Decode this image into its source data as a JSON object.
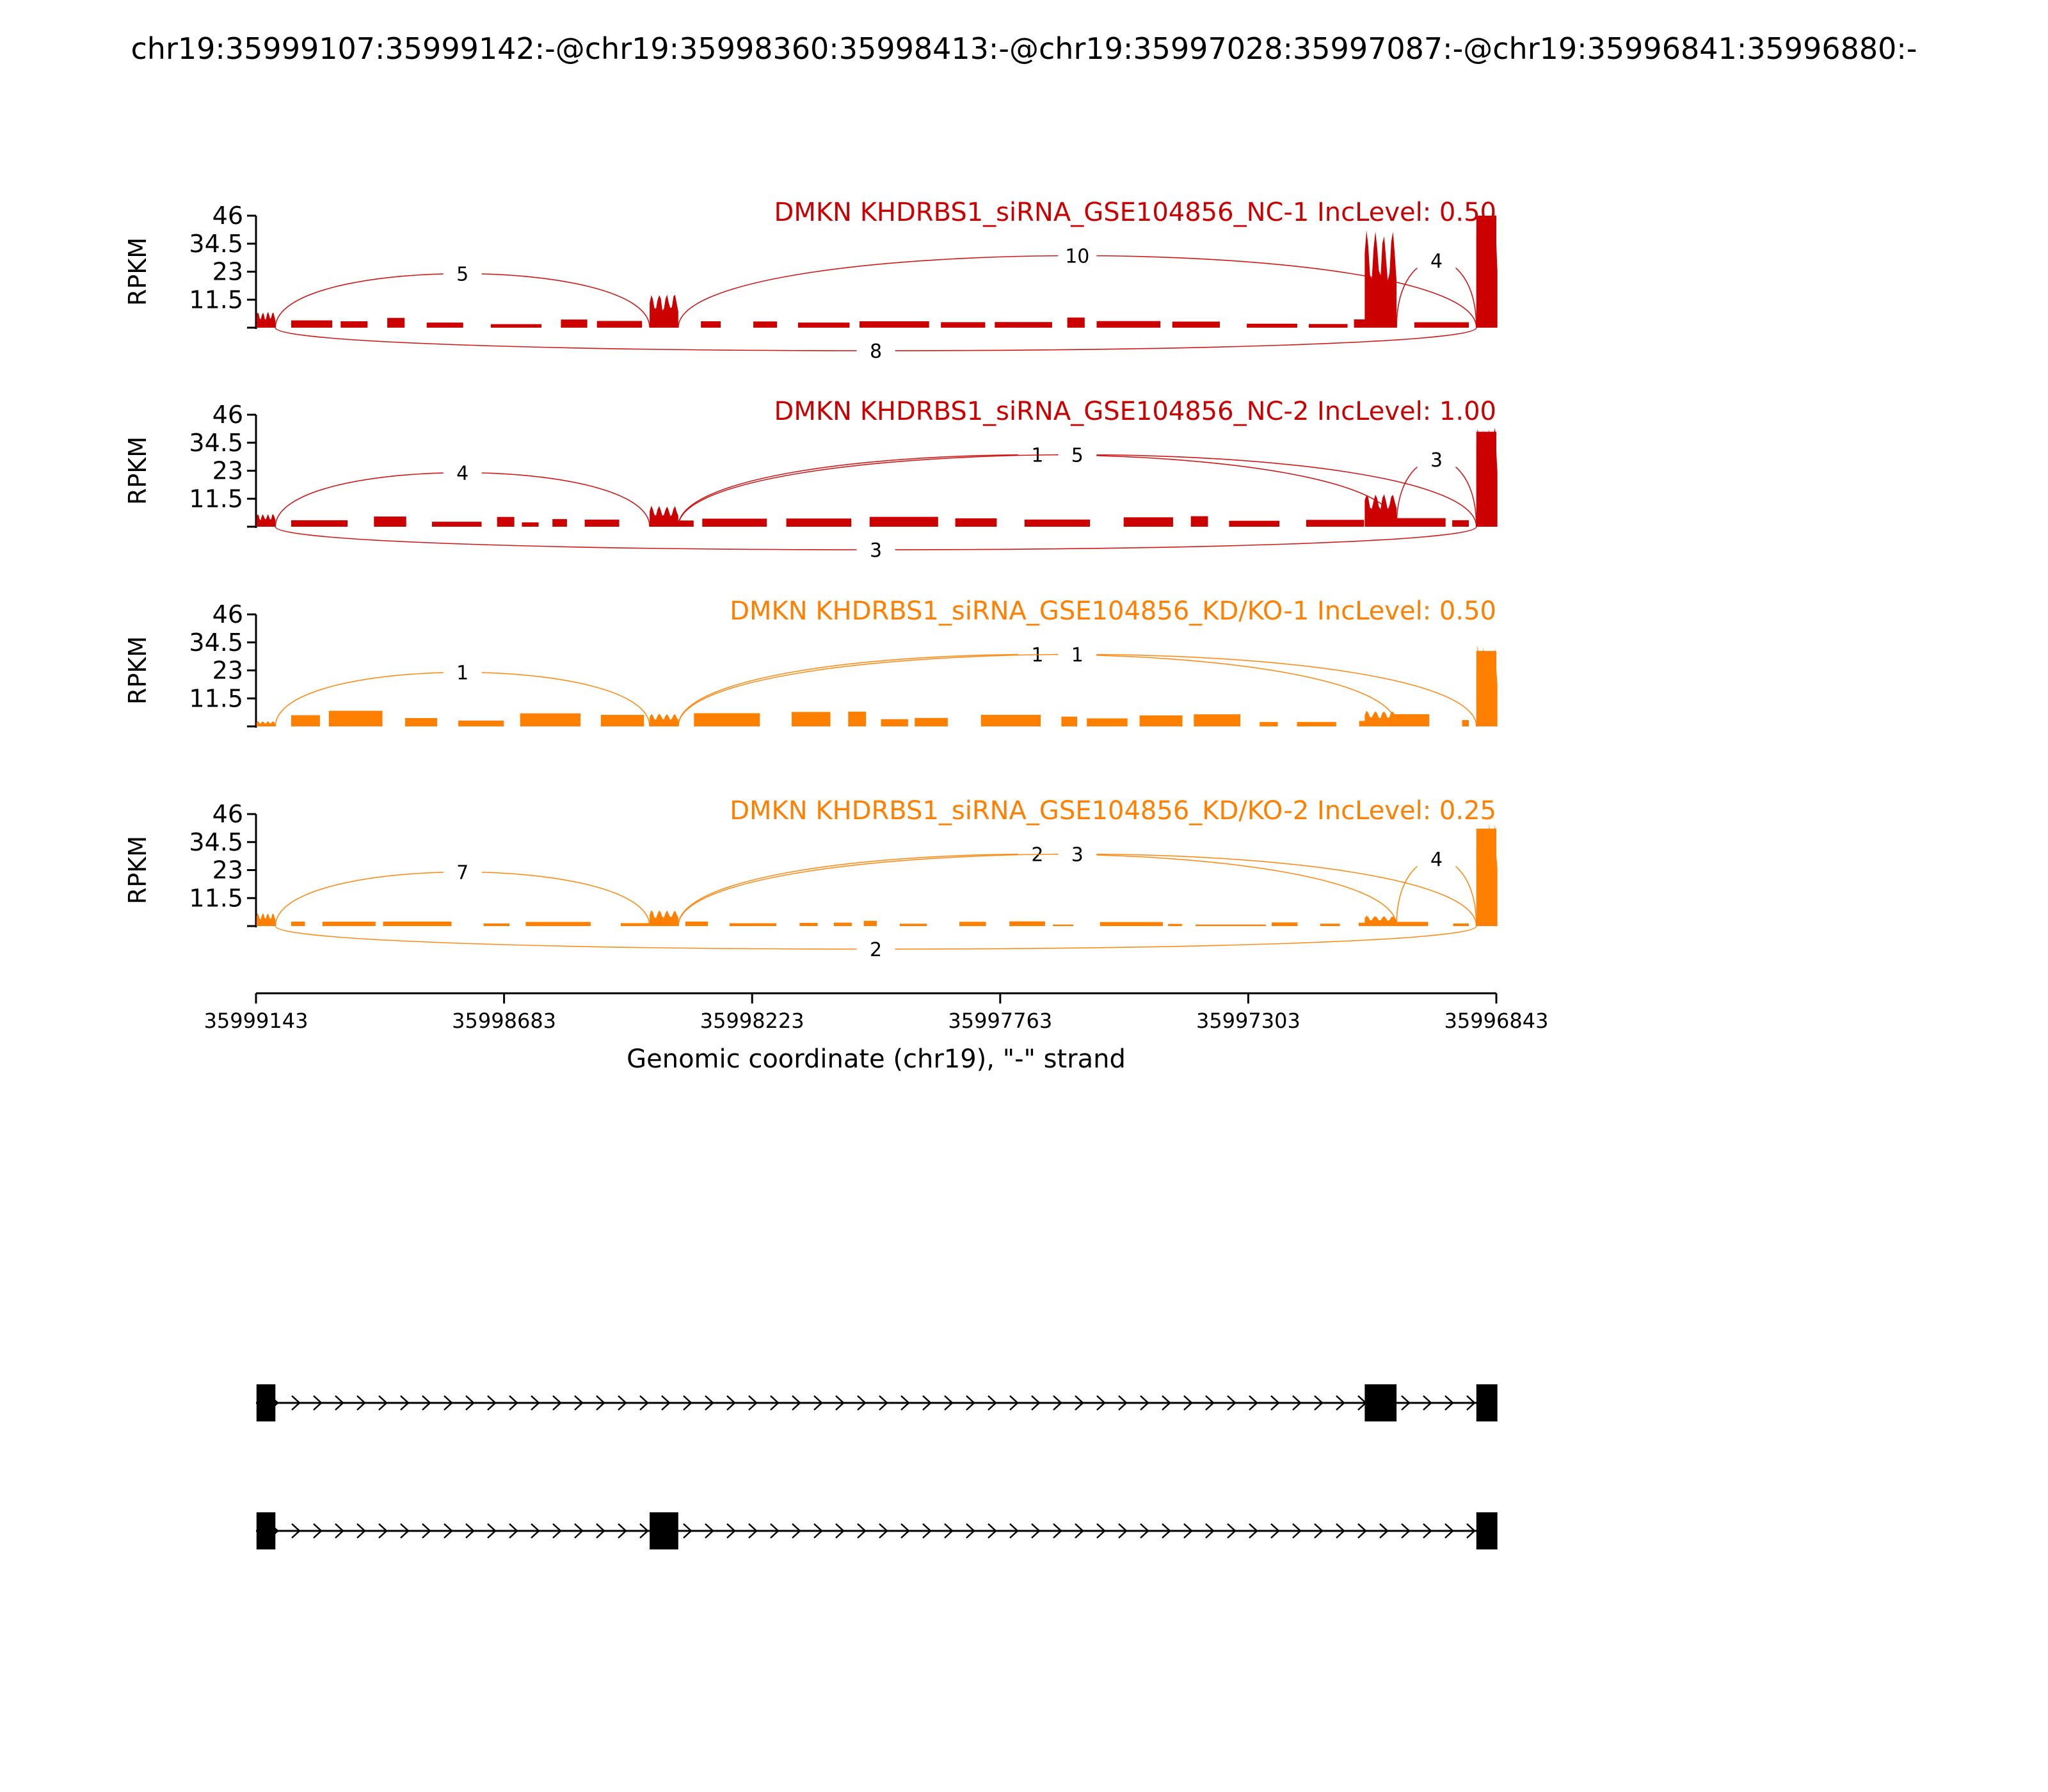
{
  "title": "chr19:35999107:35999142:-@chr19:35998360:35998413:-@chr19:35997028:35997087:-@chr19:35996841:35996880:-",
  "chart_data": {
    "type": "area",
    "ylabel": "RPKM",
    "xlabel": "Genomic coordinate (chr19), \"-\" strand",
    "x_ticks": [
      "35999143",
      "35998683",
      "35998223",
      "35997763",
      "35997303",
      "35996843"
    ],
    "x_range": [
      35999143,
      35996843
    ],
    "y_ticks": [
      "46",
      "34.5",
      "23",
      "11.5"
    ],
    "ylim": [
      0,
      46
    ],
    "colors": {
      "nc": "#cc0000",
      "kd": "#ff8000",
      "axis": "#000000"
    },
    "tracks": [
      {
        "name": "DMKN KHDRBS1_siRNA_GSE104856_NC-1 IncLevel: 0.50",
        "color": "#cc0000",
        "exon_peaks": [
          6,
          13,
          37,
          46,
          21
        ],
        "baseline": 2,
        "junctions": [
          {
            "from": 35999107,
            "to": 35998413,
            "count": "5",
            "side": "above"
          },
          {
            "from": 35998360,
            "to": 35996880,
            "count": "10",
            "side": "above"
          },
          {
            "from": 35997028,
            "to": 35996880,
            "count": "4",
            "side": "above"
          },
          {
            "from": 35999107,
            "to": 35996880,
            "count": "8",
            "side": "below"
          }
        ]
      },
      {
        "name": "DMKN KHDRBS1_siRNA_GSE104856_NC-2 IncLevel: 1.00",
        "color": "#cc0000",
        "exon_peaks": [
          5,
          8,
          13,
          39,
          25
        ],
        "baseline": 2,
        "junctions": [
          {
            "from": 35999107,
            "to": 35998413,
            "count": "4",
            "side": "above"
          },
          {
            "from": 35998360,
            "to": 35997028,
            "count": "1",
            "side": "above"
          },
          {
            "from": 35998360,
            "to": 35996880,
            "count": "5",
            "side": "above"
          },
          {
            "from": 35997028,
            "to": 35996880,
            "count": "3",
            "side": "above"
          },
          {
            "from": 35999107,
            "to": 35996880,
            "count": "3",
            "side": "below"
          }
        ]
      },
      {
        "name": "DMKN KHDRBS1_siRNA_GSE104856_KD/KO-1 IncLevel: 0.50",
        "color": "#ff8000",
        "exon_peaks": [
          2,
          5,
          6,
          31,
          26
        ],
        "baseline": 3,
        "junctions": [
          {
            "from": 35999107,
            "to": 35998413,
            "count": "1",
            "side": "above"
          },
          {
            "from": 35998360,
            "to": 35997028,
            "count": "1",
            "side": "above"
          },
          {
            "from": 35998360,
            "to": 35996880,
            "count": "1",
            "side": "above"
          }
        ]
      },
      {
        "name": "DMKN KHDRBS1_siRNA_GSE104856_KD/KO-2 IncLevel: 0.25",
        "color": "#ff8000",
        "exon_peaks": [
          5,
          6,
          4,
          40,
          25
        ],
        "baseline": 1,
        "junctions": [
          {
            "from": 35999107,
            "to": 35998413,
            "count": "7",
            "side": "above"
          },
          {
            "from": 35998360,
            "to": 35997028,
            "count": "2",
            "side": "above"
          },
          {
            "from": 35998360,
            "to": 35996880,
            "count": "3",
            "side": "above"
          },
          {
            "from": 35997028,
            "to": 35996880,
            "count": "4",
            "side": "above"
          },
          {
            "from": 35999107,
            "to": 35996880,
            "count": "2",
            "side": "below"
          }
        ]
      }
    ],
    "isoforms": [
      {
        "exons": [
          [
            35999142,
            35999107
          ],
          [
            35997087,
            35997028
          ],
          [
            35996880,
            35996841
          ]
        ]
      },
      {
        "exons": [
          [
            35999142,
            35999107
          ],
          [
            35998413,
            35998360
          ],
          [
            35996880,
            35996841
          ]
        ]
      }
    ]
  }
}
